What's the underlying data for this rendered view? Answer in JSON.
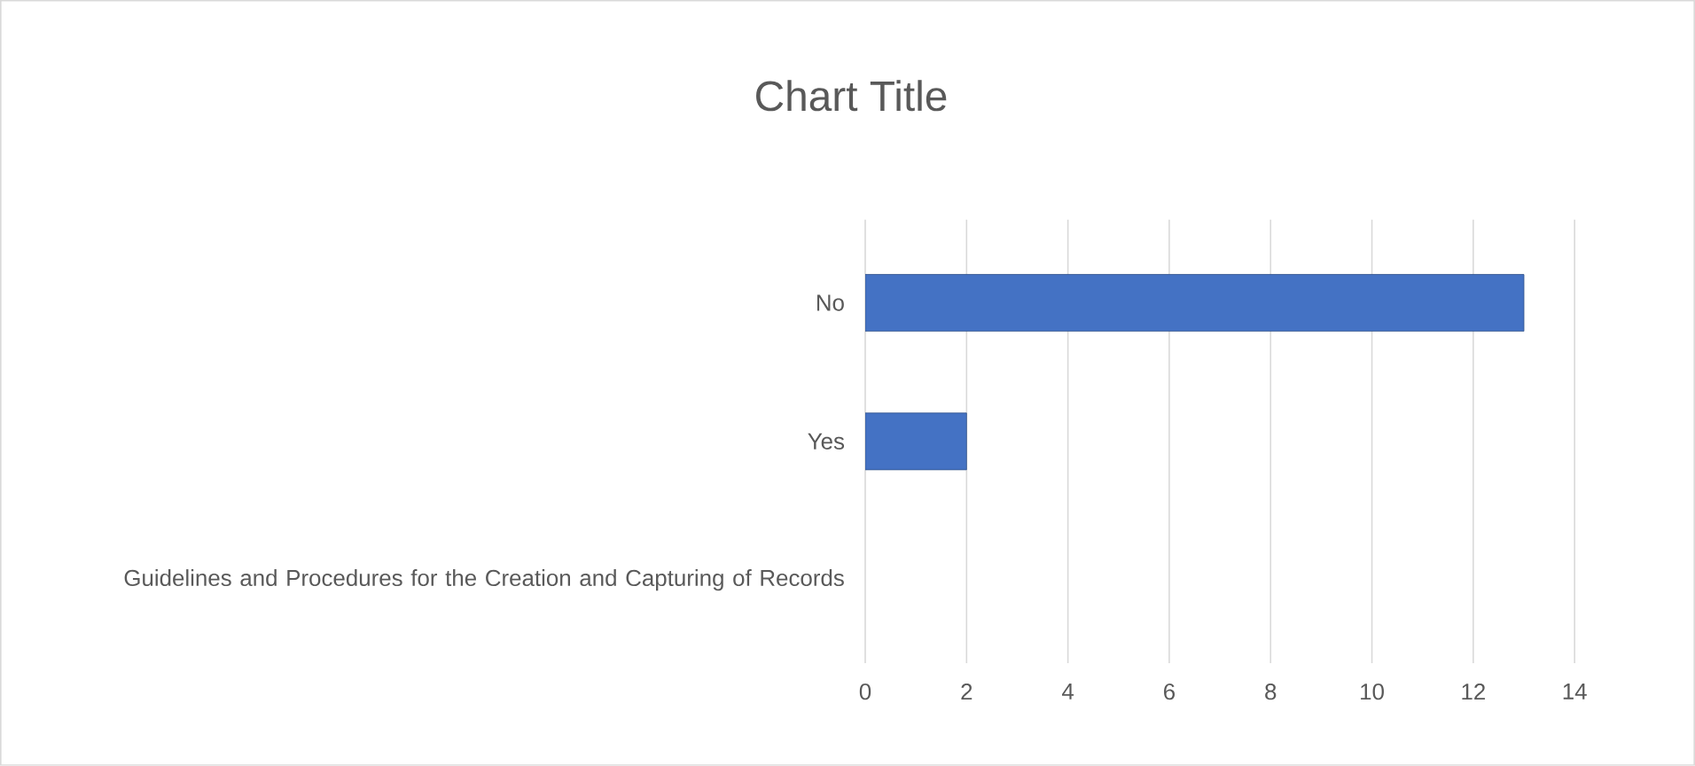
{
  "chart_data": {
    "type": "bar",
    "orientation": "horizontal",
    "title": "Chart Title",
    "categories": [
      "No",
      "Yes",
      "Guidelines and Procedures for the Creation and Capturing of Records"
    ],
    "values": [
      13,
      2,
      null
    ],
    "color": "#4472c4",
    "xlim": [
      0,
      14
    ],
    "xticks": [
      0,
      2,
      4,
      6,
      8,
      10,
      12,
      14
    ],
    "grid": "x"
  }
}
